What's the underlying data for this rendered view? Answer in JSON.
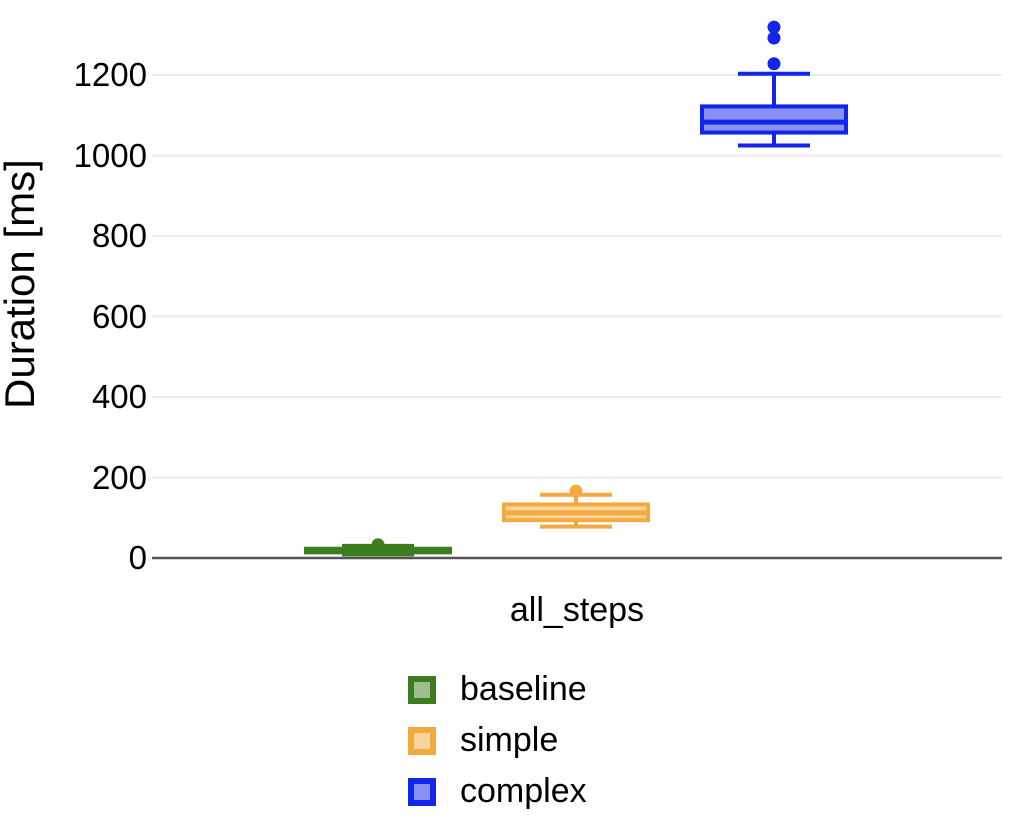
{
  "chart_data": {
    "type": "boxplot",
    "title": "",
    "ylabel": "Duration [ms]",
    "xlabel": "",
    "categories": [
      "all_steps"
    ],
    "y_ticks": [
      0,
      200,
      400,
      600,
      800,
      1000,
      1200
    ],
    "ylim": [
      0,
      1390
    ],
    "grid": true,
    "grid_color": "#ececec",
    "axis_line_color": "#555555",
    "legend_position": "bottom-left-of-center",
    "series": [
      {
        "name": "baseline",
        "line_color": "#3e7c20",
        "fill_color": "#9fbe90",
        "stats": {
          "whisker_low": 9,
          "q1": 14,
          "median": 19,
          "q3": 23,
          "whisker_high": 30
        },
        "outliers": [
          33
        ]
      },
      {
        "name": "simple",
        "line_color": "#f2a93d",
        "fill_color": "#f8d49e",
        "stats": {
          "whisker_low": 78,
          "q1": 94,
          "median": 112,
          "q3": 133,
          "whisker_high": 157
        },
        "outliers": [
          166
        ]
      },
      {
        "name": "complex",
        "line_color": "#1126ea",
        "fill_color": "#8892f5",
        "stats": {
          "whisker_low": 1025,
          "q1": 1057,
          "median": 1083,
          "q3": 1122,
          "whisker_high": 1203
        },
        "outliers": [
          1228,
          1292,
          1319
        ]
      }
    ]
  }
}
